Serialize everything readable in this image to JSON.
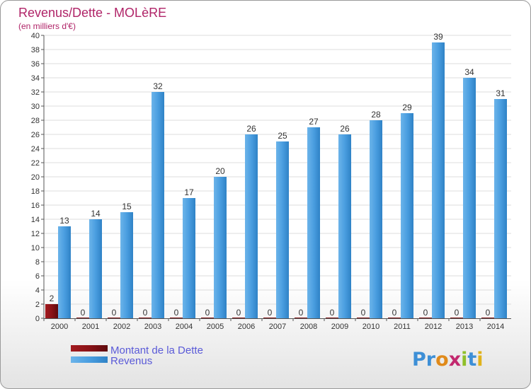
{
  "chart_data": {
    "type": "bar",
    "title": "Revenus/Dette - MOLèRE",
    "subtitle": "(en milliers d'€)",
    "categories": [
      "2000",
      "2001",
      "2002",
      "2003",
      "2004",
      "2005",
      "2006",
      "2007",
      "2008",
      "2009",
      "2010",
      "2011",
      "2012",
      "2013",
      "2014"
    ],
    "series": [
      {
        "name": "Montant de la Dette",
        "color": "#7a0f12",
        "values": [
          2,
          0,
          0,
          0,
          0,
          0,
          0,
          0,
          0,
          0,
          0,
          0,
          0,
          0,
          0
        ]
      },
      {
        "name": "Revenus",
        "color": "#3d8fd6",
        "values": [
          13,
          14,
          15,
          32,
          17,
          20,
          26,
          25,
          27,
          26,
          28,
          29,
          39,
          34,
          31
        ]
      }
    ],
    "ylim": [
      0,
      40
    ],
    "yticks": [
      0,
      2,
      4,
      6,
      8,
      10,
      12,
      14,
      16,
      18,
      20,
      22,
      24,
      26,
      28,
      30,
      32,
      34,
      36,
      38,
      40
    ],
    "grid": true,
    "legend_position": "bottom-left"
  },
  "branding": {
    "logo_text": "Proxiti"
  }
}
